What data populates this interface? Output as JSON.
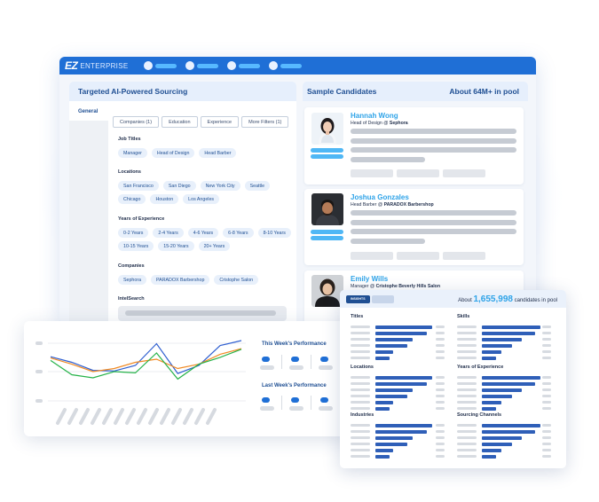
{
  "app": {
    "logo": "EZ",
    "brand": "ENTERPRISE"
  },
  "left_panel": {
    "title": "Targeted AI-Powered Sourcing",
    "side_tab": "General",
    "filter_tabs": [
      "Companies (1)",
      "Education",
      "Experience",
      "More Filters (1)"
    ],
    "sections": {
      "job_titles": {
        "label": "Job Titles",
        "chips": [
          "Manager",
          "Head of Design",
          "Head Barber"
        ]
      },
      "locations": {
        "label": "Locations",
        "chips": [
          "San Francisco",
          "San Diego",
          "New York City",
          "Seattle",
          "Chicago",
          "Houston",
          "Los Angeles"
        ]
      },
      "experience": {
        "label": "Years of Experience",
        "chips": [
          "0-2 Years",
          "2-4 Years",
          "4-6 Years",
          "6-8 Years",
          "8-10 Years",
          "10-15 Years",
          "15-20 Years",
          "20+ Years"
        ]
      },
      "companies": {
        "label": "Companies",
        "chips": [
          "Sephora",
          "PARADOX Barbershop",
          "Cristophe Salon"
        ]
      },
      "intelsearch": {
        "label": "IntelSearch"
      }
    }
  },
  "right_panel": {
    "title": "Sample Candidates",
    "pool": "About 64M+ in pool",
    "candidates": [
      {
        "name": "Hannah Wong",
        "role": "Head of Design @ ",
        "company": "Sephora"
      },
      {
        "name": "Joshua Gonzales",
        "role": "Head Barber @ ",
        "company": "PARADOX Barbershop"
      },
      {
        "name": "Emily Wills",
        "role": "Manager @ ",
        "company": "Cristophe Beverly Hills Salon"
      }
    ]
  },
  "performance": {
    "this_week": "This Week's Performance",
    "last_week": "Last Week's Performance",
    "chart_data": {
      "type": "line",
      "series": [
        {
          "color": "#2f5fd0",
          "values": [
            0.74,
            0.65,
            0.52,
            0.51,
            0.6,
            0.95,
            0.47,
            0.6,
            0.92,
            1.0
          ]
        },
        {
          "color": "#f08a24",
          "values": [
            0.72,
            0.62,
            0.5,
            0.55,
            0.65,
            0.7,
            0.55,
            0.62,
            0.78,
            0.87
          ]
        },
        {
          "color": "#27b34a",
          "values": [
            0.68,
            0.45,
            0.4,
            0.5,
            0.48,
            0.8,
            0.38,
            0.62,
            0.73,
            0.86
          ]
        }
      ]
    }
  },
  "insights": {
    "tab_active": "INSIGHTS",
    "count_prefix": "About ",
    "count": "1,655,998",
    "count_suffix": " candidates in pool",
    "sections": [
      "Titles",
      "Skills",
      "Locations",
      "Years of Experience",
      "Industries",
      "Sourcing Channels"
    ]
  },
  "colors": {
    "brand": "#1f6fd6",
    "accent": "#2ea3e8",
    "bar": "#2f5fb8"
  }
}
